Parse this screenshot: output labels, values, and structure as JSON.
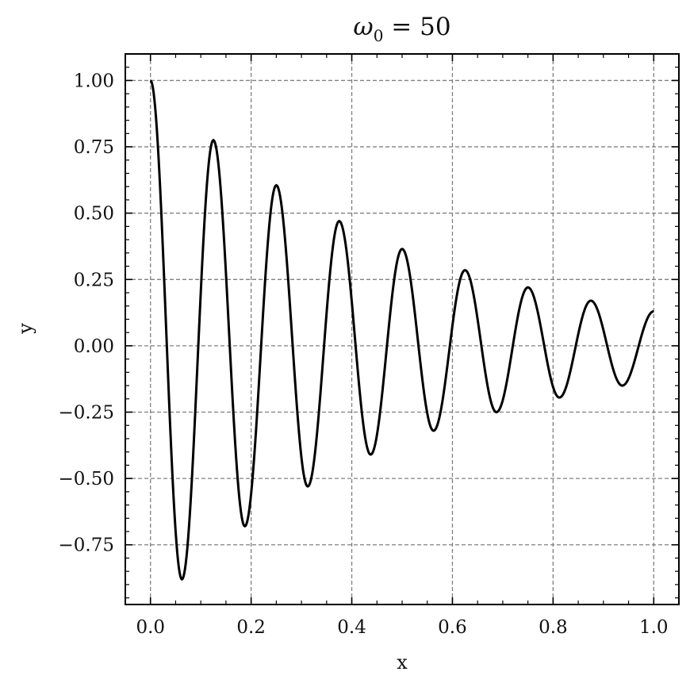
{
  "chart_data": {
    "type": "line",
    "title": {
      "symbol": "ω",
      "subscript": "0",
      "rest": " = 50"
    },
    "xlabel": "x",
    "ylabel": "y",
    "xlim": [
      -0.05,
      1.05
    ],
    "ylim": [
      -0.975,
      1.1
    ],
    "xticks": [
      0.0,
      0.2,
      0.4,
      0.6,
      0.8,
      1.0
    ],
    "xtick_labels": [
      "0.0",
      "0.2",
      "0.4",
      "0.6",
      "0.8",
      "1.0"
    ],
    "yticks": [
      -0.75,
      -0.5,
      -0.25,
      0.0,
      0.25,
      0.5,
      0.75,
      1.0
    ],
    "ytick_labels": [
      "−0.75",
      "−0.50",
      "−0.25",
      "0.00",
      "0.25",
      "0.50",
      "0.75",
      "1.00"
    ],
    "grid": true,
    "line_color": "#000000",
    "grid_color": "#808080",
    "series": [
      {
        "x": [
          0.0,
          0.0625,
          0.125,
          0.1875,
          0.25,
          0.3125,
          0.375,
          0.4375,
          0.5,
          0.5625,
          0.625,
          0.6875,
          0.75,
          0.8125,
          0.875,
          0.9375,
          1.0
        ],
        "y": [
          1.0,
          -0.88,
          0.775,
          -0.68,
          0.605,
          -0.53,
          0.47,
          -0.41,
          0.365,
          -0.32,
          0.285,
          -0.25,
          0.22,
          -0.195,
          0.17,
          -0.15,
          0.13
        ]
      }
    ]
  }
}
